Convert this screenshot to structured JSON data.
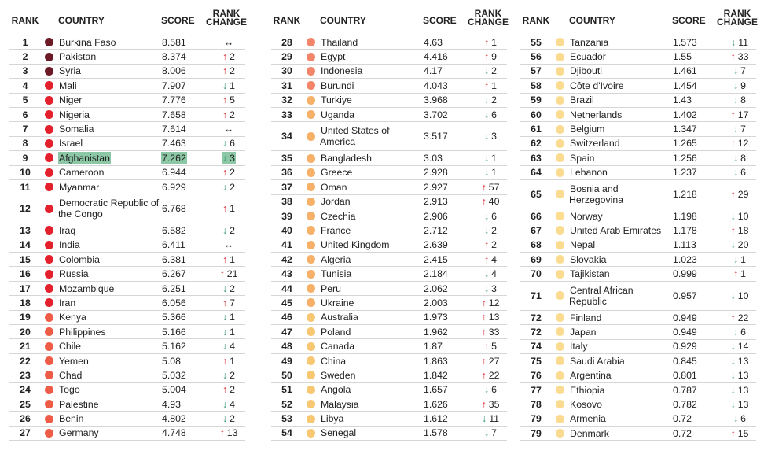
{
  "header": {
    "rank": "RANK",
    "country": "COUNTRY",
    "score": "SCORE",
    "change": "RANK CHANGE"
  },
  "tier_colors": [
    "#6b1a26",
    "#e3202b",
    "#ee5c47",
    "#f3866a",
    "#f6b067",
    "#f8c772",
    "#fadb8f"
  ],
  "arrow_colors": {
    "↑": "#d9262e",
    "↓": "#1f8a6e",
    "↔": "#222222"
  },
  "highlight_color": "#8cc7a6",
  "columns": [
    {
      "rows": [
        {
          "r": 1,
          "c": "Burkina Faso",
          "s": 8.581,
          "a": "↔",
          "t": 0
        },
        {
          "r": 2,
          "c": "Pakistan",
          "s": 8.374,
          "a": "↑",
          "n": 2,
          "t": 0
        },
        {
          "r": 3,
          "c": "Syria",
          "s": 8.006,
          "a": "↑",
          "n": 2,
          "t": 0
        },
        {
          "r": 4,
          "c": "Mali",
          "s": 7.907,
          "a": "↓",
          "n": 1,
          "t": 1
        },
        {
          "r": 5,
          "c": "Niger",
          "s": 7.776,
          "a": "↑",
          "n": 5,
          "t": 1
        },
        {
          "r": 6,
          "c": "Nigeria",
          "s": 7.658,
          "a": "↑",
          "n": 2,
          "t": 1
        },
        {
          "r": 7,
          "c": "Somalia",
          "s": 7.614,
          "a": "↔",
          "t": 1
        },
        {
          "r": 8,
          "c": "Israel",
          "s": 7.463,
          "a": "↓",
          "n": 6,
          "t": 1
        },
        {
          "r": 9,
          "c": "Afghanistan",
          "s": 7.262,
          "a": "↓",
          "n": 3,
          "t": 1,
          "highlight": true
        },
        {
          "r": 10,
          "c": "Cameroon",
          "s": 6.944,
          "a": "↑",
          "n": 2,
          "t": 1
        },
        {
          "r": 11,
          "c": "Myanmar",
          "s": 6.929,
          "a": "↓",
          "n": 2,
          "t": 1
        },
        {
          "r": 12,
          "c": "Democratic Republic of the Congo",
          "s": 6.768,
          "a": "↑",
          "n": 1,
          "t": 1
        },
        {
          "r": 13,
          "c": "Iraq",
          "s": 6.582,
          "a": "↓",
          "n": 2,
          "t": 1
        },
        {
          "r": 14,
          "c": "India",
          "s": 6.411,
          "a": "↔",
          "t": 1
        },
        {
          "r": 15,
          "c": "Colombia",
          "s": 6.381,
          "a": "↑",
          "n": 1,
          "t": 1
        },
        {
          "r": 16,
          "c": "Russia",
          "s": 6.267,
          "a": "↑",
          "n": 21,
          "t": 1
        },
        {
          "r": 17,
          "c": "Mozambique",
          "s": 6.251,
          "a": "↓",
          "n": 2,
          "t": 1
        },
        {
          "r": 18,
          "c": "Iran",
          "s": 6.056,
          "a": "↑",
          "n": 7,
          "t": 1
        },
        {
          "r": 19,
          "c": "Kenya",
          "s": 5.366,
          "a": "↓",
          "n": 1,
          "t": 2
        },
        {
          "r": 20,
          "c": "Philippines",
          "s": 5.166,
          "a": "↓",
          "n": 1,
          "t": 2
        },
        {
          "r": 21,
          "c": "Chile",
          "s": 5.162,
          "a": "↓",
          "n": 4,
          "t": 2
        },
        {
          "r": 22,
          "c": "Yemen",
          "s": 5.08,
          "a": "↑",
          "n": 1,
          "t": 2
        },
        {
          "r": 23,
          "c": "Chad",
          "s": 5.032,
          "a": "↓",
          "n": 2,
          "t": 2
        },
        {
          "r": 24,
          "c": "Togo",
          "s": 5.004,
          "a": "↑",
          "n": 2,
          "t": 2
        },
        {
          "r": 25,
          "c": "Palestine",
          "s": 4.93,
          "a": "↓",
          "n": 4,
          "t": 2
        },
        {
          "r": 26,
          "c": "Benin",
          "s": 4.802,
          "a": "↓",
          "n": 2,
          "t": 2
        },
        {
          "r": 27,
          "c": "Germany",
          "s": 4.748,
          "a": "↑",
          "n": 13,
          "t": 2
        }
      ]
    },
    {
      "rows": [
        {
          "r": 28,
          "c": "Thailand",
          "s": 4.63,
          "a": "↑",
          "n": 1,
          "t": 3
        },
        {
          "r": 29,
          "c": "Egypt",
          "s": 4.416,
          "a": "↑",
          "n": 9,
          "t": 3
        },
        {
          "r": 30,
          "c": "Indonesia",
          "s": 4.17,
          "a": "↓",
          "n": 2,
          "t": 3
        },
        {
          "r": 31,
          "c": "Burundi",
          "s": 4.043,
          "a": "↑",
          "n": 1,
          "t": 3
        },
        {
          "r": 32,
          "c": "Turkiye",
          "s": 3.968,
          "a": "↓",
          "n": 2,
          "t": 4
        },
        {
          "r": 33,
          "c": "Uganda",
          "s": 3.702,
          "a": "↓",
          "n": 6,
          "t": 4
        },
        {
          "r": 34,
          "c": "United States of America",
          "s": 3.517,
          "a": "↓",
          "n": 3,
          "t": 4
        },
        {
          "r": 35,
          "c": "Bangladesh",
          "s": 3.03,
          "a": "↓",
          "n": 1,
          "t": 4
        },
        {
          "r": 36,
          "c": "Greece",
          "s": 2.928,
          "a": "↓",
          "n": 1,
          "t": 4
        },
        {
          "r": 37,
          "c": "Oman",
          "s": 2.927,
          "a": "↑",
          "n": 57,
          "t": 4
        },
        {
          "r": 38,
          "c": "Jordan",
          "s": 2.913,
          "a": "↑",
          "n": 40,
          "t": 4
        },
        {
          "r": 39,
          "c": "Czechia",
          "s": 2.906,
          "a": "↓",
          "n": 6,
          "t": 4
        },
        {
          "r": 40,
          "c": "France",
          "s": 2.712,
          "a": "↓",
          "n": 2,
          "t": 4
        },
        {
          "r": 41,
          "c": "United Kingdom",
          "s": 2.639,
          "a": "↑",
          "n": 2,
          "t": 4
        },
        {
          "r": 42,
          "c": "Algeria",
          "s": 2.415,
          "a": "↑",
          "n": 4,
          "t": 4
        },
        {
          "r": 43,
          "c": "Tunisia",
          "s": 2.184,
          "a": "↓",
          "n": 4,
          "t": 4
        },
        {
          "r": 44,
          "c": "Peru",
          "s": 2.062,
          "a": "↓",
          "n": 3,
          "t": 4
        },
        {
          "r": 45,
          "c": "Ukraine",
          "s": 2.003,
          "a": "↑",
          "n": 12,
          "t": 4
        },
        {
          "r": 46,
          "c": "Australia",
          "s": 1.973,
          "a": "↑",
          "n": 13,
          "t": 5
        },
        {
          "r": 47,
          "c": "Poland",
          "s": 1.962,
          "a": "↑",
          "n": 33,
          "t": 5
        },
        {
          "r": 48,
          "c": "Canada",
          "s": 1.87,
          "a": "↑",
          "n": 5,
          "t": 5
        },
        {
          "r": 49,
          "c": "China",
          "s": 1.863,
          "a": "↑",
          "n": 27,
          "t": 5
        },
        {
          "r": 50,
          "c": "Sweden",
          "s": 1.842,
          "a": "↑",
          "n": 22,
          "t": 5
        },
        {
          "r": 51,
          "c": "Angola",
          "s": 1.657,
          "a": "↓",
          "n": 6,
          "t": 5
        },
        {
          "r": 52,
          "c": "Malaysia",
          "s": 1.626,
          "a": "↑",
          "n": 35,
          "t": 5
        },
        {
          "r": 53,
          "c": "Libya",
          "s": 1.612,
          "a": "↓",
          "n": 11,
          "t": 5
        },
        {
          "r": 54,
          "c": "Senegal",
          "s": 1.578,
          "a": "↓",
          "n": 7,
          "t": 5
        }
      ]
    },
    {
      "rows": [
        {
          "r": 55,
          "c": "Tanzania",
          "s": 1.573,
          "a": "↓",
          "n": 11,
          "t": 6
        },
        {
          "r": 56,
          "c": "Ecuador",
          "s": 1.55,
          "a": "↑",
          "n": 33,
          "t": 6
        },
        {
          "r": 57,
          "c": "Djibouti",
          "s": 1.461,
          "a": "↓",
          "n": 7,
          "t": 6
        },
        {
          "r": 58,
          "c": "Côte d'Ivoire",
          "s": 1.454,
          "a": "↓",
          "n": 9,
          "t": 6
        },
        {
          "r": 59,
          "c": "Brazil",
          "s": 1.43,
          "a": "↓",
          "n": 8,
          "t": 6
        },
        {
          "r": 60,
          "c": "Netherlands",
          "s": 1.402,
          "a": "↑",
          "n": 17,
          "t": 6
        },
        {
          "r": 61,
          "c": "Belgium",
          "s": 1.347,
          "a": "↓",
          "n": 7,
          "t": 6
        },
        {
          "r": 62,
          "c": "Switzerland",
          "s": 1.265,
          "a": "↑",
          "n": 12,
          "t": 6
        },
        {
          "r": 63,
          "c": "Spain",
          "s": 1.256,
          "a": "↓",
          "n": 8,
          "t": 6
        },
        {
          "r": 64,
          "c": "Lebanon",
          "s": 1.237,
          "a": "↓",
          "n": 6,
          "t": 6
        },
        {
          "r": 65,
          "c": "Bosnia and Herzegovina",
          "s": 1.218,
          "a": "↑",
          "n": 29,
          "t": 6
        },
        {
          "r": 66,
          "c": "Norway",
          "s": 1.198,
          "a": "↓",
          "n": 10,
          "t": 6
        },
        {
          "r": 67,
          "c": "United Arab Emirates",
          "s": 1.178,
          "a": "↑",
          "n": 18,
          "t": 6
        },
        {
          "r": 68,
          "c": "Nepal",
          "s": 1.113,
          "a": "↓",
          "n": 20,
          "t": 6
        },
        {
          "r": 69,
          "c": "Slovakia",
          "s": 1.023,
          "a": "↓",
          "n": 1,
          "t": 6
        },
        {
          "r": 70,
          "c": "Tajikistan",
          "s": 0.999,
          "a": "↑",
          "n": 1,
          "t": 6
        },
        {
          "r": 71,
          "c": "Central African Republic",
          "s": 0.957,
          "a": "↓",
          "n": 10,
          "t": 6
        },
        {
          "r": 72,
          "c": "Finland",
          "s": 0.949,
          "a": "↑",
          "n": 22,
          "t": 6
        },
        {
          "r": 72,
          "c": "Japan",
          "s": 0.949,
          "a": "↓",
          "n": 6,
          "t": 6
        },
        {
          "r": 74,
          "c": "Italy",
          "s": 0.929,
          "a": "↓",
          "n": 14,
          "t": 6
        },
        {
          "r": 75,
          "c": "Saudi Arabia",
          "s": 0.845,
          "a": "↓",
          "n": 13,
          "t": 6
        },
        {
          "r": 76,
          "c": "Argentina",
          "s": 0.801,
          "a": "↓",
          "n": 13,
          "t": 6
        },
        {
          "r": 77,
          "c": "Ethiopia",
          "s": 0.787,
          "a": "↓",
          "n": 13,
          "t": 6
        },
        {
          "r": 78,
          "c": "Kosovo",
          "s": 0.782,
          "a": "↓",
          "n": 13,
          "t": 6
        },
        {
          "r": 79,
          "c": "Armenia",
          "s": 0.72,
          "a": "↓",
          "n": 6,
          "t": 6
        },
        {
          "r": 79,
          "c": "Denmark",
          "s": 0.72,
          "a": "↑",
          "n": 15,
          "t": 6
        }
      ]
    }
  ]
}
